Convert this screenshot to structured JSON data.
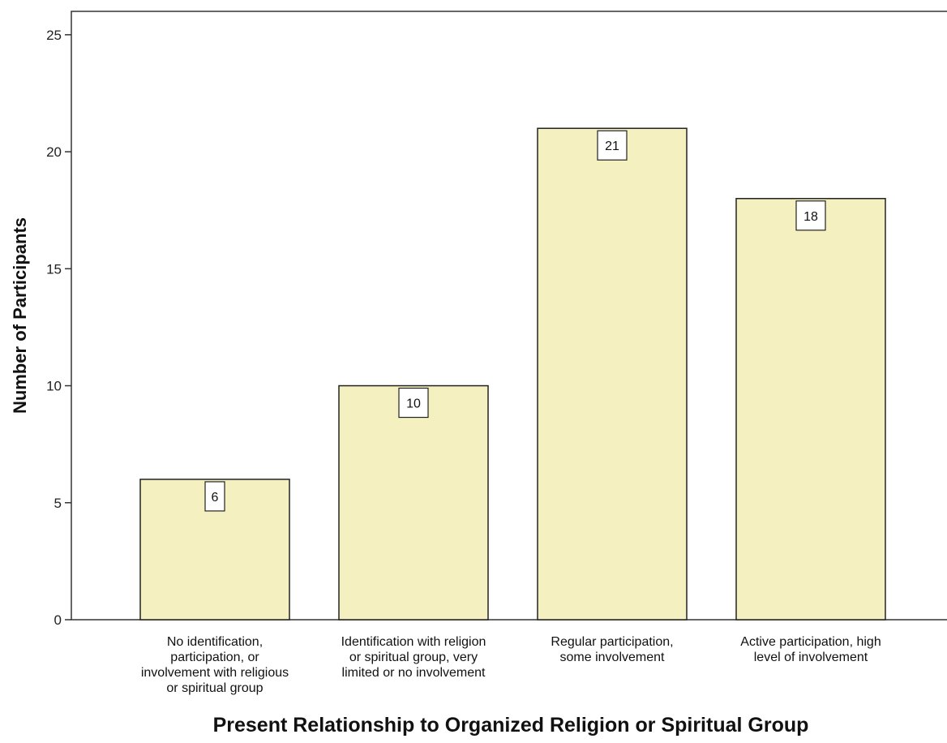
{
  "chart_data": {
    "type": "bar",
    "title": "",
    "xlabel": "Present Relationship to Organized Religion or Spiritual Group",
    "ylabel": "Number of Participants",
    "ylim": [
      0,
      26
    ],
    "yticks": [
      0,
      5,
      10,
      15,
      20,
      25
    ],
    "grid": false,
    "legend": "none",
    "categories": [
      [
        "No identification,",
        "participation, or",
        "involvement with religious",
        "or spiritual group"
      ],
      [
        "Identification with religion",
        "or spiritual group, very",
        "limited or no involvement"
      ],
      [
        "Regular participation,",
        "some involvement"
      ],
      [
        "Active participation, high",
        "level of involvement"
      ]
    ],
    "values": [
      6,
      10,
      21,
      18
    ],
    "data_labels": [
      "6",
      "10",
      "21",
      "18"
    ],
    "colors": {
      "bar_fill": "#f5f0bf",
      "bar_stroke": "#222222",
      "axis": "#333333",
      "label_box": "#ffffff"
    }
  }
}
